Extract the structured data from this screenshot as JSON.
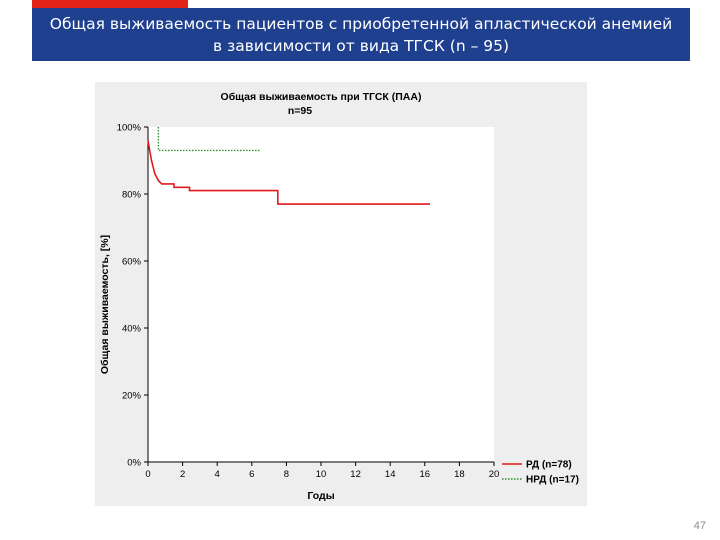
{
  "slide": {
    "title_line1": "Общая выживаемость пациентов с приобретенной апластической анемией",
    "title_line2": "в зависимости от вида ТГСК (n – 95)",
    "page_number": "47"
  },
  "colors": {
    "banner": "#1f3f8f",
    "accent": "#e2231a",
    "series_rd": "#e31a1c",
    "series_nrd": "#2e8b2e"
  },
  "chart_data": {
    "type": "line",
    "title": "Общая выживаемость при ТГСК (ПАА)",
    "subtitle": "n=95",
    "xlabel": "Годы",
    "ylabel": "Общая выживаемость, [%]",
    "xlim": [
      0,
      20
    ],
    "ylim": [
      0,
      100
    ],
    "x_ticks": [
      "0",
      "2",
      "4",
      "6",
      "8",
      "10",
      "12",
      "14",
      "16",
      "18",
      "20"
    ],
    "y_ticks": [
      "0%",
      "20%",
      "40%",
      "60%",
      "80%",
      "100%"
    ],
    "grid": false,
    "legend_position": "bottom-right",
    "series": [
      {
        "name": "РД (n=78)",
        "style": "solid",
        "points": [
          [
            0,
            96
          ],
          [
            0.1,
            93
          ],
          [
            0.2,
            90
          ],
          [
            0.3,
            88
          ],
          [
            0.4,
            86
          ],
          [
            0.6,
            84
          ],
          [
            0.8,
            83
          ],
          [
            1.5,
            83
          ],
          [
            1.5,
            82
          ],
          [
            2.4,
            82
          ],
          [
            2.4,
            81
          ],
          [
            7.5,
            81
          ],
          [
            7.5,
            77
          ],
          [
            16.3,
            77
          ]
        ]
      },
      {
        "name": "НРД (n=17)",
        "style": "dotted",
        "points": [
          [
            0.6,
            100
          ],
          [
            0.6,
            93
          ],
          [
            6.5,
            93
          ]
        ]
      }
    ]
  }
}
